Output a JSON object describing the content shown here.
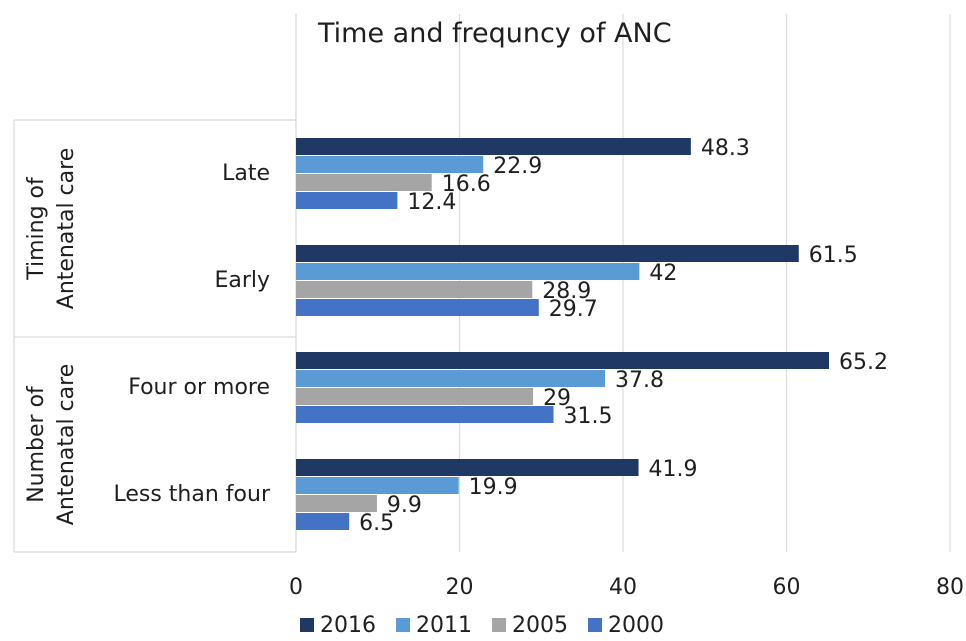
{
  "chart_data": {
    "type": "bar",
    "orientation": "horizontal",
    "title": "Time and  frequncy of ANC",
    "groups": [
      {
        "label": "Timing of Antenatal care",
        "label_lines": [
          "Timing of",
          "Antenatal care"
        ],
        "categories": [
          "Late",
          "Early"
        ]
      },
      {
        "label": "Number of Antenatal care",
        "label_lines": [
          "Number of",
          "Antenatal care"
        ],
        "categories": [
          "Four or more",
          "Less than four"
        ]
      }
    ],
    "categories": [
      "Late",
      "Early",
      "Four or more",
      "Less than four"
    ],
    "series": [
      {
        "name": "2016",
        "color": "#203864",
        "values": [
          48.3,
          61.5,
          65.2,
          41.9
        ]
      },
      {
        "name": "2011",
        "color": "#5b9bd5",
        "values": [
          22.9,
          42,
          37.8,
          19.9
        ]
      },
      {
        "name": "2005",
        "color": "#a5a5a5",
        "values": [
          16.6,
          28.9,
          29,
          9.9
        ]
      },
      {
        "name": "2000",
        "color": "#4472c4",
        "values": [
          12.4,
          29.7,
          31.5,
          6.5
        ]
      }
    ],
    "xlim": [
      0,
      80
    ],
    "xticks": [
      0,
      20,
      40,
      60,
      80
    ],
    "grid": true,
    "legend_position": "bottom"
  }
}
